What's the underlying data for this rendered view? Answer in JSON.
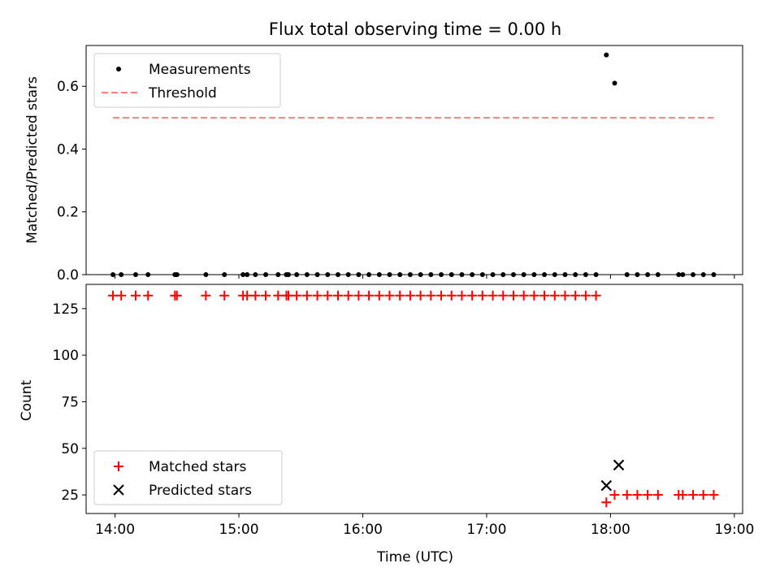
{
  "chart_data": [
    {
      "type": "scatter",
      "title": "Flux total observing time = 0.00 h",
      "xlabel": "",
      "ylabel": "Matched/Predicted stars",
      "xlim": [
        "13:46",
        "19:04"
      ],
      "ylim": [
        0,
        0.73
      ],
      "yticks": [
        0.0,
        0.2,
        0.4,
        0.6
      ],
      "ytick_labels": [
        "0.0",
        "0.2",
        "0.4",
        "0.6"
      ],
      "xtick_labels_visible": false,
      "legend": {
        "placement": "upper-left"
      },
      "series": [
        {
          "name": "Measurements",
          "marker": "dot",
          "color": "#000000",
          "x": [
            "13:59",
            "14:03",
            "14:10",
            "14:16",
            "14:29",
            "14:30",
            "14:44",
            "14:53",
            "15:02",
            "15:04",
            "15:08",
            "15:13",
            "15:19",
            "15:23",
            "15:24",
            "15:28",
            "15:33",
            "15:38",
            "15:43",
            "15:48",
            "15:53",
            "15:58",
            "16:03",
            "16:08",
            "16:13",
            "16:18",
            "16:23",
            "16:28",
            "16:33",
            "16:38",
            "16:43",
            "16:48",
            "16:53",
            "16:58",
            "17:03",
            "17:08",
            "17:13",
            "17:18",
            "17:23",
            "17:28",
            "17:33",
            "17:38",
            "17:43",
            "17:48",
            "17:53",
            "17:58",
            "18:02",
            "18:08",
            "18:13",
            "18:18",
            "18:23",
            "18:33",
            "18:35",
            "18:40",
            "18:45",
            "18:50"
          ],
          "y": [
            0,
            0,
            0,
            0,
            0,
            0,
            0,
            0,
            0,
            0,
            0,
            0,
            0,
            0,
            0,
            0,
            0,
            0,
            0,
            0,
            0,
            0,
            0,
            0,
            0,
            0,
            0,
            0,
            0,
            0,
            0,
            0,
            0,
            0,
            0,
            0,
            0,
            0,
            0,
            0,
            0,
            0,
            0,
            0,
            0,
            0.7,
            0.61,
            0,
            0,
            0,
            0,
            0,
            0,
            0,
            0,
            0
          ]
        },
        {
          "name": "Threshold",
          "style": "dashed",
          "color": "#ff7f7f",
          "x": [
            "13:59",
            "18:50"
          ],
          "y": [
            0.5,
            0.5
          ]
        }
      ]
    },
    {
      "type": "scatter",
      "title": "",
      "xlabel": "Time (UTC)",
      "ylabel": "Count",
      "xlim": [
        "13:46",
        "19:04"
      ],
      "ylim": [
        15,
        138
      ],
      "yticks": [
        25,
        50,
        75,
        100,
        125
      ],
      "ytick_labels": [
        "25",
        "50",
        "75",
        "100",
        "125"
      ],
      "xticks": [
        "14:00",
        "15:00",
        "16:00",
        "17:00",
        "18:00",
        "19:00"
      ],
      "xtick_labels": [
        "14:00",
        "15:00",
        "16:00",
        "17:00",
        "18:00",
        "19:00"
      ],
      "legend": {
        "placement": "lower-left"
      },
      "series": [
        {
          "name": "Matched stars",
          "marker": "plus",
          "color": "#ff0000",
          "x": [
            "13:59",
            "14:03",
            "14:10",
            "14:16",
            "14:29",
            "14:30",
            "14:44",
            "14:53",
            "15:02",
            "15:04",
            "15:08",
            "15:13",
            "15:19",
            "15:23",
            "15:24",
            "15:28",
            "15:33",
            "15:38",
            "15:43",
            "15:48",
            "15:53",
            "15:58",
            "16:03",
            "16:08",
            "16:13",
            "16:18",
            "16:23",
            "16:28",
            "16:33",
            "16:38",
            "16:43",
            "16:48",
            "16:53",
            "16:58",
            "17:03",
            "17:08",
            "17:13",
            "17:18",
            "17:23",
            "17:28",
            "17:33",
            "17:38",
            "17:43",
            "17:48",
            "17:53",
            "17:58",
            "18:02",
            "18:08",
            "18:13",
            "18:18",
            "18:23",
            "18:33",
            "18:35",
            "18:40",
            "18:45",
            "18:50"
          ],
          "y": [
            132,
            132,
            132,
            132,
            132,
            132,
            132,
            132,
            132,
            132,
            132,
            132,
            132,
            132,
            132,
            132,
            132,
            132,
            132,
            132,
            132,
            132,
            132,
            132,
            132,
            132,
            132,
            132,
            132,
            132,
            132,
            132,
            132,
            132,
            132,
            132,
            132,
            132,
            132,
            132,
            132,
            132,
            132,
            132,
            132,
            21,
            25,
            25,
            25,
            25,
            25,
            25,
            25,
            25,
            25,
            25
          ]
        },
        {
          "name": "Predicted stars",
          "marker": "x",
          "color": "#000000",
          "x": [
            "17:58",
            "18:04"
          ],
          "y": [
            30,
            41
          ]
        }
      ]
    }
  ]
}
